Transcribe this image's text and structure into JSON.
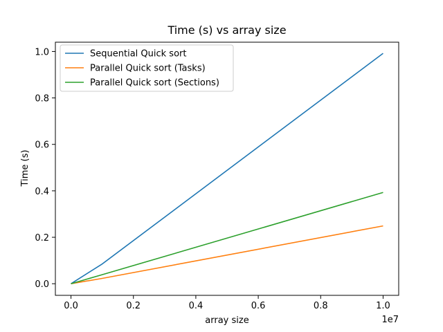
{
  "chart_data": {
    "type": "line",
    "title": "Time (s) vs array size",
    "xlabel": "array size",
    "ylabel": "Time (s)",
    "x_offset_label": "1e7",
    "xlim": [
      -500000,
      10500000
    ],
    "ylim": [
      -0.05,
      1.04
    ],
    "x_scale": 10000000,
    "x_ticks": [
      0,
      2000000,
      4000000,
      6000000,
      8000000,
      10000000
    ],
    "x_tick_labels": [
      "0.0",
      "0.2",
      "0.4",
      "0.6",
      "0.8",
      "1.0"
    ],
    "y_ticks": [
      0.0,
      0.2,
      0.4,
      0.6,
      0.8,
      1.0
    ],
    "y_tick_labels": [
      "0.0",
      "0.2",
      "0.4",
      "0.6",
      "0.8",
      "1.0"
    ],
    "legend_position": "top-left",
    "grid": false,
    "x": [
      0,
      1000000,
      10000000
    ],
    "series": [
      {
        "name": "Sequential Quick sort",
        "color": "#1f77b4",
        "values": [
          0.0,
          0.085,
          0.992
        ]
      },
      {
        "name": "Parallel Quick sort (Tasks)",
        "color": "#ff7f0e",
        "values": [
          0.0,
          0.023,
          0.249
        ]
      },
      {
        "name": "Parallel Quick sort (Sections)",
        "color": "#2ca02c",
        "values": [
          0.0,
          0.039,
          0.393
        ]
      }
    ]
  }
}
